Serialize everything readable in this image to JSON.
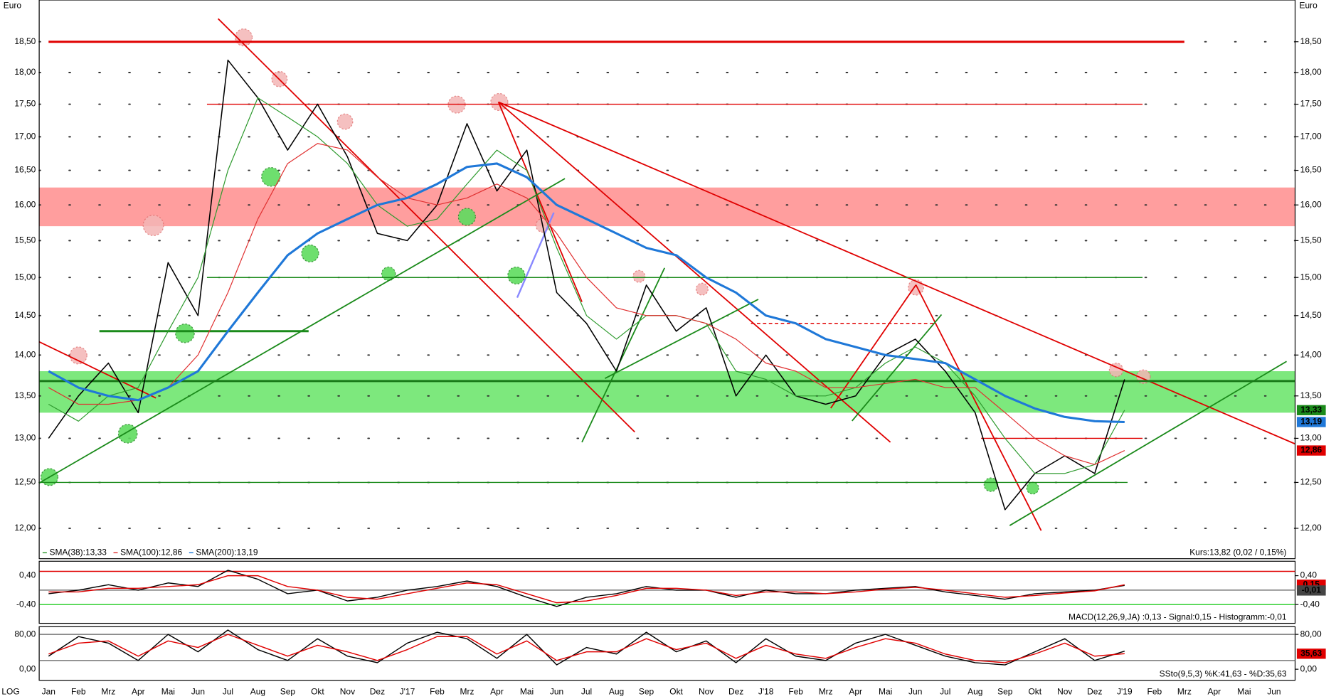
{
  "chart_data": [
    {
      "type": "line",
      "scale": "log",
      "scale_label": "LOG",
      "y_label": "Euro",
      "y2_label": "Euro",
      "categories": [
        "Jan",
        "Feb",
        "Mrz",
        "Apr",
        "Mai",
        "Jun",
        "Jul",
        "Aug",
        "Sep",
        "Okt",
        "Nov",
        "Dez",
        "J'17",
        "Feb",
        "Mrz",
        "Apr",
        "Mai",
        "Jun",
        "Jul",
        "Aug",
        "Sep",
        "Okt",
        "Nov",
        "Dez",
        "J'18",
        "Feb",
        "Mrz",
        "Apr",
        "Mai",
        "Jun",
        "Jul",
        "Aug",
        "Sep",
        "Okt",
        "Nov",
        "Dez",
        "J'19",
        "Feb",
        "Mrz",
        "Apr",
        "Mai",
        "Jun"
      ],
      "series": [
        {
          "color": "#000000",
          "values": [
            13.0,
            13.5,
            13.9,
            13.3,
            15.2,
            14.5,
            18.2,
            17.6,
            16.8,
            17.5,
            16.7,
            15.6,
            15.5,
            16.0,
            17.2,
            16.2,
            16.8,
            14.8,
            14.4,
            13.8,
            14.9,
            14.3,
            14.6,
            13.5,
            14.0,
            13.5,
            13.4,
            13.5,
            14.0,
            14.2,
            13.8,
            13.3,
            12.2,
            12.6,
            12.8,
            12.6,
            13.7,
            null,
            null,
            null,
            null,
            null
          ]
        },
        {
          "name": "SMA(38):13,33",
          "color": "#2e9a2e",
          "values": [
            13.4,
            13.2,
            13.5,
            13.6,
            14.3,
            15.0,
            16.5,
            17.6,
            17.3,
            17.0,
            16.6,
            16.0,
            15.7,
            15.8,
            16.3,
            16.8,
            16.5,
            15.4,
            14.5,
            14.2,
            14.5,
            14.5,
            14.4,
            13.8,
            13.7,
            13.5,
            13.5,
            13.6,
            13.9,
            14.1,
            13.9,
            13.5,
            13.0,
            12.6,
            12.6,
            12.7,
            13.33,
            null,
            null,
            null,
            null,
            null
          ]
        },
        {
          "name": "SMA(100):12,86",
          "color": "#e03030",
          "values": [
            13.6,
            13.4,
            13.4,
            13.45,
            13.6,
            14.0,
            14.8,
            15.8,
            16.6,
            16.9,
            16.8,
            16.4,
            16.1,
            16.0,
            16.1,
            16.3,
            16.1,
            15.6,
            15.0,
            14.6,
            14.5,
            14.5,
            14.4,
            14.2,
            13.9,
            13.8,
            13.6,
            13.6,
            13.65,
            13.7,
            13.6,
            13.6,
            13.3,
            13.0,
            12.8,
            12.7,
            12.86,
            null,
            null,
            null,
            null,
            null
          ]
        },
        {
          "name": "SMA(200):13,19",
          "color": "#1f78d8",
          "values": [
            13.8,
            13.6,
            13.5,
            13.45,
            13.6,
            13.8,
            14.3,
            14.8,
            15.3,
            15.6,
            15.8,
            16.0,
            16.1,
            16.3,
            16.55,
            16.6,
            16.4,
            16.0,
            15.8,
            15.6,
            15.4,
            15.3,
            15.0,
            14.8,
            14.5,
            14.4,
            14.2,
            14.1,
            14.0,
            13.95,
            13.9,
            13.7,
            13.5,
            13.35,
            13.25,
            13.2,
            13.19,
            null,
            null,
            null,
            null,
            null
          ]
        }
      ],
      "ylim": [
        11.68,
        19.2
      ],
      "yticks": [
        {
          "value": 12,
          "label": "12,00"
        },
        {
          "value": 12.5,
          "label": "12,50"
        },
        {
          "value": 13,
          "label": "13,00"
        },
        {
          "value": 13.5,
          "label": "13,50"
        },
        {
          "value": 14,
          "label": "14,00"
        },
        {
          "value": 14.5,
          "label": "14,50"
        },
        {
          "value": 15,
          "label": "15,00"
        },
        {
          "value": 15.5,
          "label": "15,50"
        },
        {
          "value": 16,
          "label": "16,00"
        },
        {
          "value": 16.5,
          "label": "16,50"
        },
        {
          "value": 17,
          "label": "17,00"
        },
        {
          "value": 17.5,
          "label": "17,50"
        },
        {
          "value": 18,
          "label": "18,00"
        },
        {
          "value": 18.5,
          "label": "18,50"
        }
      ],
      "grid": true,
      "zones": [
        {
          "range": [
            15.7,
            16.25
          ],
          "color": "#ff9e9e"
        },
        {
          "range": [
            13.3,
            13.8
          ],
          "color": "#7de87d"
        }
      ],
      "levels": [
        {
          "value": 18.5,
          "span": [
            0,
            38
          ],
          "color": "#e00000",
          "style": "thick"
        },
        {
          "value": 17.5,
          "span": [
            5.3,
            36.6
          ],
          "color": "#e00000",
          "style": "thin"
        },
        {
          "value": 15.0,
          "span": [
            5.3,
            36.6
          ],
          "color": "#1a8a1a",
          "style": "thin"
        },
        {
          "value": 14.3,
          "span": [
            1.7,
            8.7
          ],
          "color": "#1a8a1a",
          "style": "thick"
        },
        {
          "value": 13.68,
          "span": [
            -0.3,
            41.7
          ],
          "color": "#1a7a1a",
          "style": "thick"
        },
        {
          "value": 12.5,
          "span": [
            -0.3,
            36.1
          ],
          "color": "#1a8a1a",
          "style": "thin"
        },
        {
          "value": 13.0,
          "span": [
            31.2,
            36.6
          ],
          "color": "#e00000",
          "style": "thin"
        },
        {
          "value": 14.4,
          "span": [
            23.5,
            29.7
          ],
          "color": "#e00000",
          "style": "dashed"
        }
      ],
      "end_labels": [
        {
          "value": 13.33,
          "label": "13,33",
          "color": "#1a8a1a"
        },
        {
          "value": 13.19,
          "label": "13,19",
          "color": "#1f78d8"
        },
        {
          "value": 12.86,
          "label": "12,86",
          "color": "#e00000"
        }
      ],
      "info": "Kurs:13,82 (0,02 / 0,15%)"
    },
    {
      "type": "line",
      "series": [
        {
          "color": "#000000",
          "values": [
            -0.1,
            0.0,
            0.15,
            0.0,
            0.2,
            0.1,
            0.55,
            0.3,
            -0.1,
            0.0,
            -0.3,
            -0.2,
            0.0,
            0.1,
            0.25,
            0.1,
            -0.2,
            -0.45,
            -0.2,
            -0.1,
            0.1,
            0.0,
            0.0,
            -0.2,
            0.0,
            -0.1,
            -0.1,
            0.0,
            0.05,
            0.1,
            -0.05,
            -0.15,
            -0.25,
            -0.1,
            -0.05,
            0.0,
            0.13,
            null,
            null,
            null,
            null,
            null
          ]
        },
        {
          "color": "#e00000",
          "values": [
            -0.05,
            -0.05,
            0.05,
            0.05,
            0.1,
            0.15,
            0.4,
            0.4,
            0.1,
            0.0,
            -0.2,
            -0.25,
            -0.1,
            0.05,
            0.2,
            0.15,
            -0.1,
            -0.35,
            -0.3,
            -0.15,
            0.05,
            0.05,
            0.0,
            -0.15,
            -0.05,
            -0.05,
            -0.1,
            -0.05,
            0.03,
            0.08,
            0.0,
            -0.1,
            -0.2,
            -0.15,
            -0.08,
            -0.02,
            0.15,
            null,
            null,
            null,
            null,
            null
          ]
        }
      ],
      "ylim": [
        -0.92,
        0.8
      ],
      "yticks": [
        {
          "value": 0.4,
          "label": "0,40"
        },
        {
          "value": -0.4,
          "label": "-0,40"
        }
      ],
      "levels": [
        {
          "value": 0.52,
          "span": [
            -0.3,
            41.7
          ],
          "color": "#e00000",
          "style": "thin"
        },
        {
          "value": -0.4,
          "span": [
            -0.3,
            41.7
          ],
          "color": "#22cc22",
          "style": "thin"
        },
        {
          "value": 0,
          "span": [
            -0.3,
            41.7
          ],
          "color": "#777777",
          "style": "thin"
        }
      ],
      "end_labels": [
        {
          "value": 0.15,
          "label": "0,15",
          "color": "#e00000"
        },
        {
          "value": -0.01,
          "label": "-0,01",
          "color": "#444444"
        }
      ],
      "info": "MACD(12,26,9,JA) :0,13 - Signal:0,15 - Histogramm:-0,01"
    },
    {
      "type": "line",
      "series": [
        {
          "color": "#000000",
          "values": [
            30,
            75,
            60,
            20,
            80,
            40,
            90,
            45,
            20,
            70,
            30,
            15,
            60,
            85,
            70,
            25,
            80,
            10,
            50,
            35,
            85,
            40,
            65,
            15,
            70,
            30,
            20,
            60,
            80,
            55,
            30,
            15,
            10,
            40,
            70,
            20,
            41.63,
            null,
            null,
            null,
            null,
            null
          ]
        },
        {
          "color": "#e00000",
          "values": [
            35,
            60,
            65,
            30,
            65,
            50,
            80,
            55,
            30,
            55,
            40,
            20,
            45,
            75,
            75,
            35,
            65,
            20,
            40,
            40,
            70,
            45,
            60,
            25,
            55,
            35,
            25,
            50,
            70,
            60,
            35,
            20,
            15,
            35,
            60,
            30,
            35.63,
            null,
            null,
            null,
            null,
            null
          ]
        }
      ],
      "ylim": [
        -25.4,
        97.6
      ],
      "yticks": [
        {
          "value": 80,
          "label": "80,00"
        },
        {
          "value": 0,
          "label": "0,00"
        }
      ],
      "levels": [
        {
          "value": 80,
          "span": [
            -0.3,
            41.7
          ],
          "color": "#777777",
          "style": "thin"
        },
        {
          "value": 20,
          "span": [
            -0.3,
            41.7
          ],
          "color": "#777777",
          "style": "thin"
        }
      ],
      "end_labels": [
        {
          "value": 35.63,
          "label": "35,63",
          "color": "#e00000"
        }
      ],
      "info": "SSto(9,5,3) %K:41,63 - %D:35,63"
    }
  ]
}
